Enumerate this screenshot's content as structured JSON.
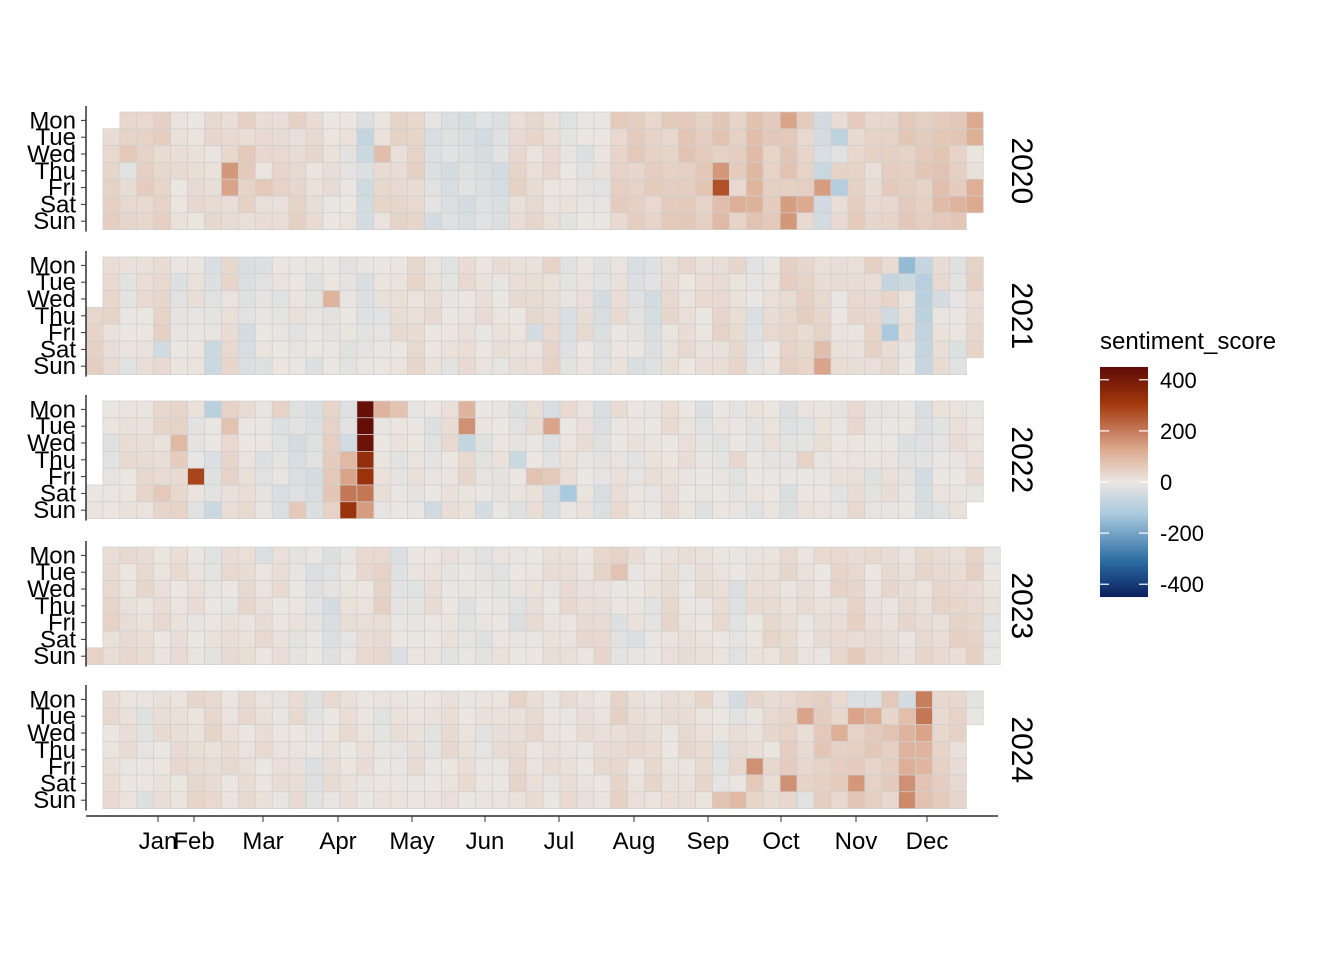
{
  "chart_data": {
    "type": "heatmap",
    "title": "",
    "xlabel": "",
    "ylabel": "",
    "facet_labels": [
      "2020",
      "2021",
      "2022",
      "2023",
      "2024"
    ],
    "weekday_labels": [
      "Mon",
      "Tue",
      "Wed",
      "Thu",
      "Fri",
      "Sat",
      "Sun"
    ],
    "month_labels": [
      "Jan",
      "Feb",
      "Mar",
      "Apr",
      "May",
      "Jun",
      "Jul",
      "Aug",
      "Sep",
      "Oct",
      "Nov",
      "Dec"
    ],
    "weeks_per_year": 53,
    "legend": {
      "title": "sentiment_score",
      "ticks": [
        400,
        200,
        0,
        -200,
        -400
      ],
      "range": [
        -450,
        450
      ],
      "colors": {
        "min": "#0b1f5e",
        "low": "#2d6fa3",
        "midlow": "#a9c9de",
        "mid": "#ebe6e2",
        "midhigh": "#dcaa90",
        "high": "#a3380c",
        "max": "#5e0a07"
      },
      "placement": "right"
    },
    "series": [
      {
        "year": "2020",
        "start_week": 1,
        "start_dow": 2,
        "end_week": 52,
        "end_dow": 6,
        "base": [
          45,
          35,
          30,
          40,
          35,
          10,
          15,
          20,
          25,
          30,
          15,
          25,
          30,
          20,
          10,
          -5,
          -40,
          20,
          30,
          35,
          -25,
          -30,
          -30,
          -30,
          -30,
          30,
          20,
          15,
          -5,
          -10,
          0,
          40,
          45,
          40,
          45,
          60,
          55,
          55,
          40,
          90,
          50,
          60,
          40,
          -50,
          30,
          40,
          30,
          45,
          50,
          50,
          70,
          55
        ],
        "special": [
          [
            1,
            2,
            "Wed",
            60
          ],
          [
            1,
            2,
            "Thu",
            -20
          ],
          [
            1,
            3,
            "Tue",
            40
          ],
          [
            1,
            3,
            "Wed",
            40
          ],
          [
            1,
            8,
            "Thu",
            150
          ],
          [
            1,
            8,
            "Fri",
            130
          ],
          [
            1,
            9,
            "Wed",
            60
          ],
          [
            1,
            9,
            "Thu",
            60
          ],
          [
            1,
            10,
            "Fri",
            60
          ],
          [
            1,
            16,
            "Mon",
            -30
          ],
          [
            1,
            16,
            "Tue",
            -70
          ],
          [
            1,
            16,
            "Wed",
            -60
          ],
          [
            1,
            17,
            "Wed",
            80
          ],
          [
            1,
            37,
            "Thu",
            150
          ],
          [
            1,
            37,
            "Fri",
            260
          ],
          [
            1,
            37,
            "Sat",
            80
          ],
          [
            1,
            37,
            "Sun",
            90
          ],
          [
            1,
            38,
            "Sat",
            110
          ],
          [
            1,
            39,
            "Sun",
            70
          ],
          [
            1,
            41,
            "Mon",
            130
          ],
          [
            1,
            41,
            "Sat",
            140
          ],
          [
            1,
            41,
            "Sun",
            150
          ],
          [
            1,
            42,
            "Sat",
            120
          ],
          [
            1,
            43,
            "Fri",
            140
          ],
          [
            1,
            44,
            "Tue",
            -80
          ],
          [
            1,
            44,
            "Wed",
            -20
          ],
          [
            1,
            44,
            "Fri",
            -100
          ],
          [
            1,
            52,
            "Mon",
            120
          ],
          [
            1,
            52,
            "Tue",
            110
          ],
          [
            1,
            52,
            "Fri",
            110
          ],
          [
            1,
            52,
            "Sat",
            120
          ],
          [
            1,
            52,
            "Sun",
            110
          ],
          [
            1,
            51,
            "Sat",
            100
          ]
        ]
      },
      {
        "year": "2021",
        "start_week": 0,
        "start_dow": 4,
        "end_week": 52,
        "end_dow": 6,
        "base": [
          40,
          25,
          -5,
          10,
          30,
          -10,
          5,
          -20,
          20,
          -30,
          -10,
          -5,
          0,
          -10,
          -5,
          -10,
          -20,
          0,
          15,
          20,
          10,
          -5,
          15,
          10,
          5,
          10,
          20,
          25,
          -20,
          15,
          -30,
          10,
          -20,
          -30,
          20,
          15,
          10,
          25,
          20,
          -15,
          15,
          35,
          35,
          30,
          10,
          20,
          30,
          20,
          5,
          -80,
          20,
          -10,
          30
        ],
        "special": [
          [
            2,
            14,
            "Wed",
            100
          ],
          [
            2,
            26,
            "Fri",
            -40
          ],
          [
            2,
            30,
            "Sun",
            -20
          ],
          [
            2,
            43,
            "Sun",
            130
          ],
          [
            2,
            43,
            "Sat",
            80
          ],
          [
            2,
            48,
            "Mon",
            -150
          ],
          [
            2,
            47,
            "Tue",
            -70
          ],
          [
            2,
            47,
            "Fri",
            -120
          ],
          [
            2,
            48,
            "Tue",
            -60
          ],
          [
            2,
            47,
            "Thu",
            -50
          ],
          [
            2,
            50,
            "Wed",
            -40
          ],
          [
            2,
            4,
            "Sat",
            -50
          ],
          [
            2,
            7,
            "Sat",
            -60
          ],
          [
            2,
            7,
            "Sun",
            -60
          ]
        ]
      },
      {
        "year": "2022",
        "start_week": 0,
        "start_dow": 6,
        "end_week": 52,
        "end_dow": 6,
        "base": [
          15,
          -10,
          10,
          20,
          25,
          40,
          -5,
          -15,
          25,
          10,
          -10,
          -20,
          -30,
          -30,
          50,
          -30,
          30,
          5,
          -5,
          0,
          -10,
          15,
          20,
          -10,
          -5,
          -10,
          10,
          -30,
          10,
          5,
          -25,
          10,
          0,
          5,
          10,
          5,
          -10,
          -5,
          -5,
          -5,
          0,
          -20,
          -5,
          5,
          0,
          15,
          -10,
          5,
          -10,
          -30,
          -5,
          5,
          5
        ],
        "special": [
          [
            3,
            15,
            "Sun",
            320
          ],
          [
            3,
            15,
            "Sat",
            200
          ],
          [
            3,
            15,
            "Fri",
            130
          ],
          [
            3,
            15,
            "Thu",
            90
          ],
          [
            3,
            16,
            "Mon",
            430
          ],
          [
            3,
            16,
            "Tue",
            440
          ],
          [
            3,
            16,
            "Wed",
            420
          ],
          [
            3,
            16,
            "Thu",
            330
          ],
          [
            3,
            16,
            "Fri",
            320
          ],
          [
            3,
            16,
            "Sat",
            240
          ],
          [
            3,
            16,
            "Sun",
            140
          ],
          [
            3,
            17,
            "Mon",
            100
          ],
          [
            3,
            18,
            "Mon",
            70
          ],
          [
            3,
            6,
            "Fri",
            280
          ],
          [
            3,
            5,
            "Wed",
            90
          ],
          [
            3,
            7,
            "Mon",
            -90
          ],
          [
            3,
            8,
            "Mon",
            40
          ],
          [
            3,
            8,
            "Tue",
            70
          ],
          [
            3,
            11,
            "Mon",
            40
          ],
          [
            3,
            22,
            "Mon",
            100
          ],
          [
            3,
            22,
            "Tue",
            160
          ],
          [
            3,
            22,
            "Wed",
            -70
          ],
          [
            3,
            27,
            "Tue",
            130
          ],
          [
            3,
            27,
            "Fri",
            60
          ],
          [
            3,
            28,
            "Sat",
            -120
          ],
          [
            3,
            26,
            "Fri",
            70
          ],
          [
            3,
            25,
            "Thu",
            -60
          ],
          [
            3,
            16,
            "Sat",
            200
          ],
          [
            3,
            7,
            "Sun",
            -60
          ],
          [
            3,
            4,
            "Sat",
            60
          ],
          [
            3,
            12,
            "Sun",
            60
          ],
          [
            3,
            20,
            "Sun",
            -50
          ],
          [
            3,
            23,
            "Sun",
            -40
          ],
          [
            3,
            38,
            "Thu",
            30
          ],
          [
            3,
            42,
            "Thu",
            40
          ]
        ]
      },
      {
        "year": "2023",
        "start_week": 0,
        "start_dow": 7,
        "end_week": 53,
        "end_dow": 7,
        "base": [
          35,
          25,
          15,
          20,
          15,
          10,
          5,
          -5,
          15,
          20,
          15,
          10,
          -5,
          -15,
          -25,
          5,
          15,
          30,
          -15,
          -5,
          10,
          0,
          -10,
          -10,
          -5,
          -5,
          10,
          5,
          15,
          15,
          25,
          -10,
          5,
          -5,
          20,
          5,
          10,
          15,
          -15,
          10,
          20,
          20,
          10,
          10,
          25,
          30,
          15,
          20,
          20,
          20,
          25,
          30,
          35
        ],
        "special": [
          [
            4,
            31,
            "Tue",
            70
          ],
          [
            4,
            31,
            "Mon",
            40
          ],
          [
            4,
            17,
            "Tue",
            40
          ],
          [
            4,
            45,
            "Sun",
            60
          ],
          [
            4,
            38,
            "Sun",
            -20
          ],
          [
            4,
            25,
            "Fri",
            -30
          ],
          [
            4,
            8,
            "Thu",
            -10
          ],
          [
            4,
            10,
            "Mon",
            -30
          ],
          [
            4,
            32,
            "Sat",
            -30
          ]
        ]
      },
      {
        "year": "2024",
        "start_week": 1,
        "start_dow": 1,
        "end_week": 52,
        "end_dow": 2,
        "base": [
          20,
          15,
          10,
          -10,
          10,
          15,
          20,
          25,
          15,
          15,
          10,
          5,
          15,
          -15,
          10,
          10,
          5,
          -5,
          5,
          10,
          -5,
          15,
          10,
          0,
          10,
          25,
          15,
          5,
          10,
          10,
          15,
          30,
          15,
          20,
          10,
          20,
          20,
          -10,
          15,
          20,
          20,
          40,
          30,
          50,
          40,
          55,
          50,
          45,
          70,
          80,
          40,
          30
        ],
        "special": [
          [
            5,
            38,
            "Mon",
            -40
          ],
          [
            5,
            38,
            "Tue",
            -20
          ],
          [
            5,
            39,
            "Fri",
            160
          ],
          [
            5,
            40,
            "Fri",
            30
          ],
          [
            5,
            41,
            "Sat",
            160
          ],
          [
            5,
            42,
            "Tue",
            130
          ],
          [
            5,
            42,
            "Sun",
            -20
          ],
          [
            5,
            44,
            "Wed",
            110
          ],
          [
            5,
            45,
            "Mon",
            -30
          ],
          [
            5,
            45,
            "Tue",
            130
          ],
          [
            5,
            45,
            "Sat",
            150
          ],
          [
            5,
            46,
            "Tue",
            110
          ],
          [
            5,
            46,
            "Mon",
            -30
          ],
          [
            5,
            47,
            "Wed",
            70
          ],
          [
            5,
            48,
            "Mon",
            -40
          ],
          [
            5,
            48,
            "Wed",
            100
          ],
          [
            5,
            48,
            "Thu",
            100
          ],
          [
            5,
            48,
            "Fri",
            110
          ],
          [
            5,
            48,
            "Sat",
            160
          ],
          [
            5,
            48,
            "Sun",
            170
          ],
          [
            5,
            49,
            "Mon",
            190
          ],
          [
            5,
            49,
            "Tue",
            200
          ],
          [
            5,
            49,
            "Wed",
            130
          ],
          [
            5,
            49,
            "Thu",
            100
          ],
          [
            5,
            50,
            "Mon",
            30
          ],
          [
            5,
            51,
            "Tue",
            40
          ],
          [
            5,
            38,
            "Sun",
            90
          ],
          [
            5,
            37,
            "Sun",
            70
          ],
          [
            5,
            41,
            "Thu",
            50
          ],
          [
            5,
            39,
            "Sat",
            60
          ]
        ]
      }
    ]
  }
}
